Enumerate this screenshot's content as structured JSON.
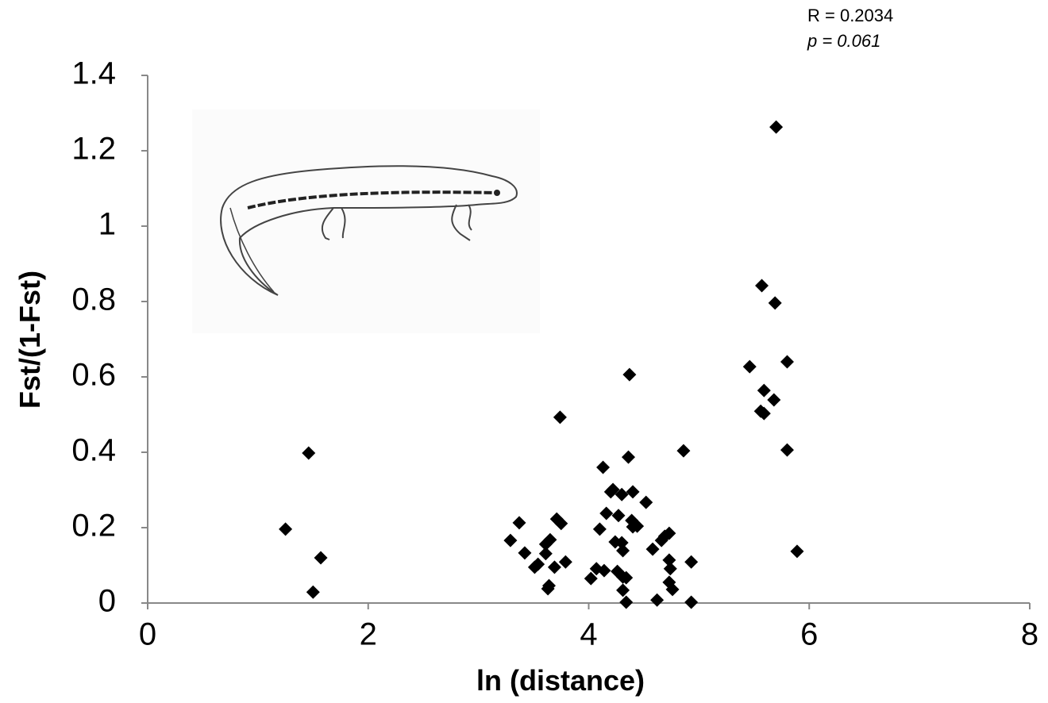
{
  "chart_data": {
    "type": "scatter",
    "annotations": [
      "R = 0.2034",
      "p = 0.061"
    ],
    "x_label": "ln (distance)",
    "y_label": "Fst/(1-Fst)",
    "color": "#000000",
    "marker": "diamond",
    "xlim": [
      0,
      8
    ],
    "xticks": [
      0,
      2,
      4,
      6,
      8
    ],
    "ylim": [
      0,
      1.4
    ],
    "yticks": [
      0,
      0.2,
      0.4,
      0.6,
      0.8,
      1,
      1.2,
      1.4
    ],
    "grid": false,
    "x": [
      5.7,
      5.57,
      5.69,
      5.46,
      5.8,
      5.59,
      5.68,
      5.56,
      5.59,
      5.8,
      5.89,
      1.46,
      1.25,
      1.57,
      1.5,
      3.74,
      4.37,
      4.86,
      4.13,
      4.36,
      3.29,
      3.37,
      3.42,
      3.61,
      3.51,
      3.54,
      3.61,
      3.65,
      3.71,
      3.75,
      3.69,
      3.79,
      3.63,
      3.64,
      4.02,
      4.07,
      4.14,
      4.1,
      4.16,
      4.2,
      4.22,
      4.27,
      4.3,
      4.4,
      4.3,
      4.24,
      4.31,
      4.26,
      4.31,
      4.34,
      4.31,
      4.34,
      4.39,
      4.4,
      4.44,
      4.52,
      4.58,
      4.66,
      4.69,
      4.73,
      4.73,
      4.74,
      4.73,
      4.76,
      4.62,
      4.93,
      4.93
    ],
    "values": [
      1.263,
      0.842,
      0.796,
      0.627,
      0.64,
      0.564,
      0.539,
      0.509,
      0.503,
      0.406,
      0.137,
      0.398,
      0.196,
      0.12,
      0.029,
      0.493,
      0.606,
      0.404,
      0.36,
      0.387,
      0.166,
      0.213,
      0.133,
      0.156,
      0.095,
      0.103,
      0.131,
      0.168,
      0.223,
      0.211,
      0.095,
      0.109,
      0.038,
      0.046,
      0.065,
      0.091,
      0.086,
      0.196,
      0.238,
      0.295,
      0.301,
      0.232,
      0.288,
      0.295,
      0.16,
      0.162,
      0.139,
      0.084,
      0.069,
      0.067,
      0.034,
      0.002,
      0.219,
      0.202,
      0.204,
      0.267,
      0.143,
      0.166,
      0.177,
      0.185,
      0.114,
      0.091,
      0.055,
      0.036,
      0.008,
      0.109,
      0.002
    ]
  }
}
